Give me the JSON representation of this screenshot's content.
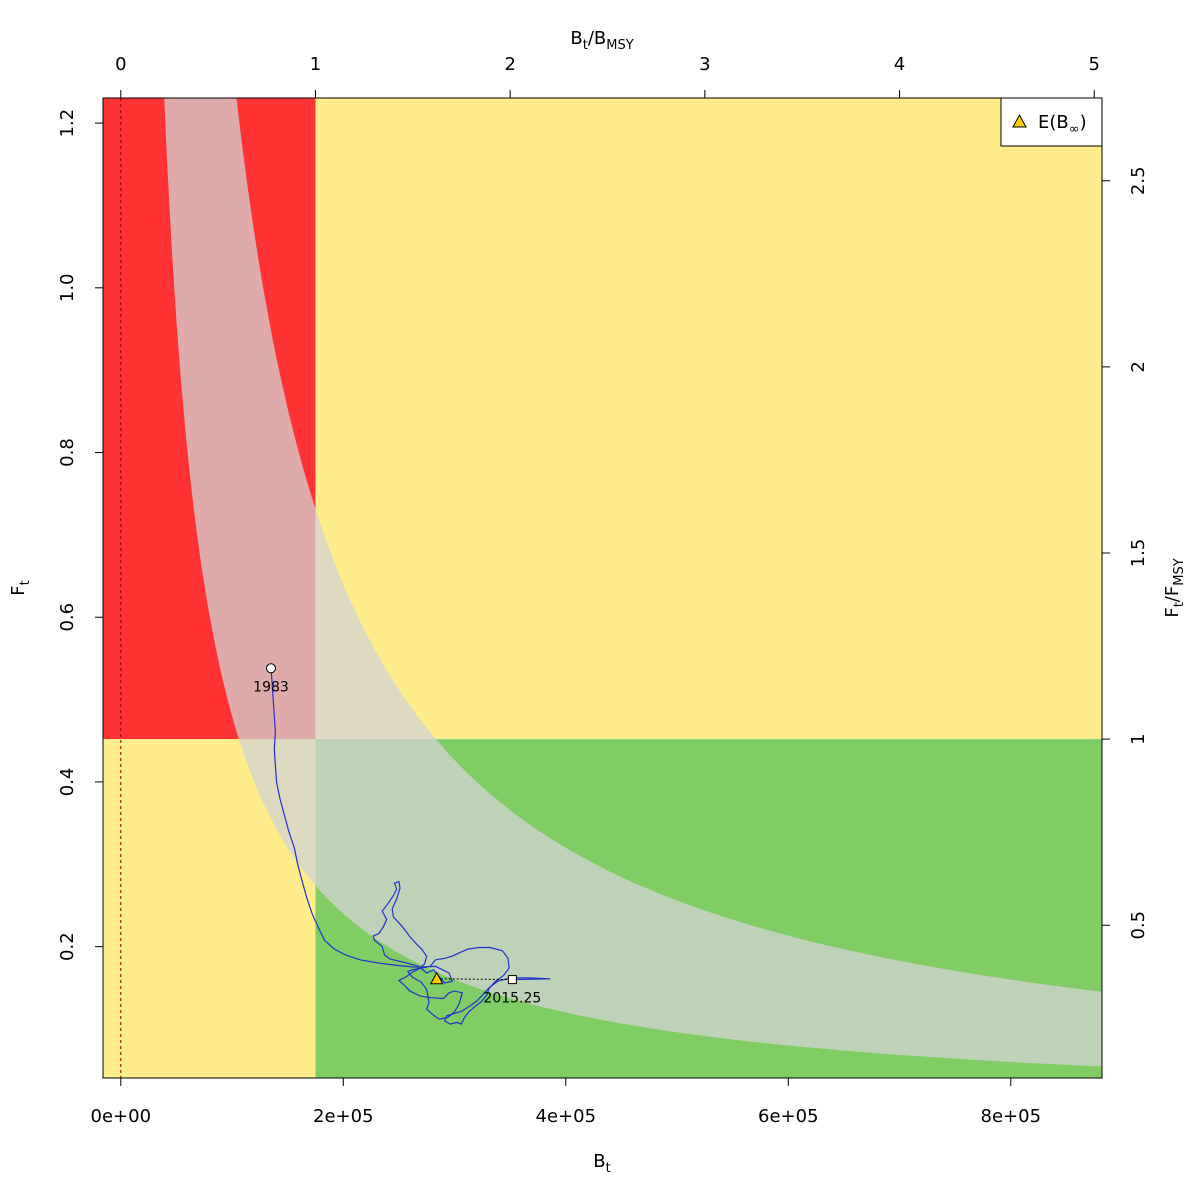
{
  "chart_data": {
    "type": "line",
    "x_axis": {
      "label_main": "B",
      "label_sub": "t",
      "range": [
        -16000,
        882000
      ],
      "ticks": [
        0,
        200000,
        400000,
        600000,
        800000
      ],
      "tick_labels": [
        "0e+00",
        "2e+05",
        "4e+05",
        "6e+05",
        "8e+05"
      ]
    },
    "y_axis": {
      "label_main": "F",
      "label_sub": "t",
      "range": [
        0.0405,
        1.2305
      ],
      "ticks": [
        0.2,
        0.4,
        0.6,
        0.8,
        1.0,
        1.2
      ],
      "tick_labels": [
        "0.2",
        "0.4",
        "0.6",
        "0.8",
        "1.0",
        "1.2"
      ]
    },
    "x_axis_top": {
      "label_main": "B",
      "label_sub": "t",
      "label_mid": "/B",
      "label_sub2": "MSY",
      "ticks": [
        0,
        1,
        2,
        3,
        4,
        5
      ],
      "tick_labels": [
        "0",
        "1",
        "2",
        "3",
        "4",
        "5"
      ]
    },
    "y_axis_right": {
      "label_main": "F",
      "label_sub": "t",
      "label_mid": "/F",
      "label_sub2": "MSY",
      "ticks": [
        0.5,
        1,
        1.5,
        2,
        2.5
      ],
      "tick_labels": [
        "0.5",
        "1",
        "1.5",
        "2",
        "2.5"
      ]
    },
    "reference": {
      "bmsy": 175000,
      "fmsy": 0.452,
      "msy": 79000,
      "msy_lower": 48000,
      "msy_upper": 128000
    },
    "colors": {
      "red": "#ff3333",
      "yellow": "#ffec8b",
      "green": "#80cd66",
      "band": "#d3d3d3",
      "trajectory": "#2233cc",
      "marker": "#ffcc00",
      "zero_line": "#8b0000"
    },
    "trajectory": [
      [
        135000,
        0.538
      ],
      [
        136000,
        0.52
      ],
      [
        137000,
        0.5
      ],
      [
        138000,
        0.48
      ],
      [
        139000,
        0.46
      ],
      [
        138000,
        0.44
      ],
      [
        139000,
        0.42
      ],
      [
        140000,
        0.4
      ],
      [
        143000,
        0.38
      ],
      [
        147000,
        0.36
      ],
      [
        151000,
        0.34
      ],
      [
        156000,
        0.32
      ],
      [
        159000,
        0.3
      ],
      [
        163000,
        0.28
      ],
      [
        167000,
        0.26
      ],
      [
        172000,
        0.24
      ],
      [
        178000,
        0.222
      ],
      [
        183000,
        0.208
      ],
      [
        192000,
        0.197
      ],
      [
        202000,
        0.19
      ],
      [
        215000,
        0.184
      ],
      [
        232000,
        0.18
      ],
      [
        250000,
        0.177
      ],
      [
        265000,
        0.175
      ],
      [
        283000,
        0.176
      ],
      [
        295000,
        0.168
      ],
      [
        298000,
        0.158
      ],
      [
        291000,
        0.156
      ],
      [
        281000,
        0.172
      ],
      [
        275000,
        0.168
      ],
      [
        268000,
        0.176
      ],
      [
        257000,
        0.18
      ],
      [
        242000,
        0.185
      ],
      [
        237000,
        0.19
      ],
      [
        235000,
        0.2
      ],
      [
        228000,
        0.208
      ],
      [
        227000,
        0.213
      ],
      [
        232000,
        0.216
      ],
      [
        236000,
        0.224
      ],
      [
        239000,
        0.233
      ],
      [
        235000,
        0.243
      ],
      [
        240000,
        0.252
      ],
      [
        245000,
        0.262
      ],
      [
        248000,
        0.27
      ],
      [
        246000,
        0.277
      ],
      [
        250000,
        0.279
      ],
      [
        251000,
        0.271
      ],
      [
        248000,
        0.258
      ],
      [
        244000,
        0.246
      ],
      [
        245000,
        0.236
      ],
      [
        250000,
        0.229
      ],
      [
        255000,
        0.221
      ],
      [
        260000,
        0.212
      ],
      [
        266000,
        0.203
      ],
      [
        271000,
        0.196
      ],
      [
        275000,
        0.188
      ],
      [
        273000,
        0.179
      ],
      [
        268000,
        0.173
      ],
      [
        262000,
        0.169
      ],
      [
        256000,
        0.163
      ],
      [
        250000,
        0.159
      ],
      [
        255000,
        0.153
      ],
      [
        260000,
        0.146
      ],
      [
        269000,
        0.14
      ],
      [
        279000,
        0.138
      ],
      [
        290000,
        0.137
      ],
      [
        295000,
        0.144
      ],
      [
        300000,
        0.146
      ],
      [
        307000,
        0.144
      ],
      [
        304000,
        0.13
      ],
      [
        300000,
        0.121
      ],
      [
        294000,
        0.114
      ],
      [
        286000,
        0.112
      ],
      [
        280000,
        0.118
      ],
      [
        275000,
        0.124
      ],
      [
        277000,
        0.132
      ],
      [
        275000,
        0.148
      ],
      [
        270000,
        0.157
      ],
      [
        262000,
        0.163
      ],
      [
        258000,
        0.17
      ],
      [
        262000,
        0.172
      ],
      [
        270000,
        0.174
      ],
      [
        278000,
        0.176
      ],
      [
        283000,
        0.184
      ],
      [
        292000,
        0.186
      ],
      [
        299000,
        0.189
      ],
      [
        305000,
        0.193
      ],
      [
        312000,
        0.197
      ],
      [
        322000,
        0.199
      ],
      [
        332000,
        0.199
      ],
      [
        343000,
        0.195
      ],
      [
        348000,
        0.186
      ],
      [
        349000,
        0.174
      ],
      [
        344000,
        0.165
      ],
      [
        336000,
        0.157
      ],
      [
        331000,
        0.149
      ],
      [
        329000,
        0.141
      ],
      [
        324000,
        0.133
      ],
      [
        318000,
        0.127
      ],
      [
        313000,
        0.121
      ],
      [
        309000,
        0.114
      ],
      [
        306000,
        0.106
      ],
      [
        302000,
        0.108
      ],
      [
        296000,
        0.106
      ],
      [
        291000,
        0.11
      ],
      [
        293000,
        0.116
      ],
      [
        300000,
        0.119
      ],
      [
        307000,
        0.122
      ],
      [
        314000,
        0.128
      ],
      [
        320000,
        0.134
      ],
      [
        325000,
        0.141
      ],
      [
        331000,
        0.15
      ],
      [
        339000,
        0.158
      ],
      [
        350000,
        0.162
      ],
      [
        367000,
        0.162
      ],
      [
        386000,
        0.161
      ],
      [
        352000,
        0.16
      ]
    ],
    "start_point": {
      "x": 135000,
      "y": 0.538,
      "label": "1983"
    },
    "end_point": {
      "x": 352000,
      "y": 0.16,
      "label": "2015.25"
    },
    "equilibrium_point": {
      "x": 284000,
      "y": 0.161
    },
    "zero_line_x": 0,
    "legend": {
      "position": "top-right",
      "label_main": "E(B",
      "label_sub": "∞",
      "label_close": ")"
    }
  }
}
